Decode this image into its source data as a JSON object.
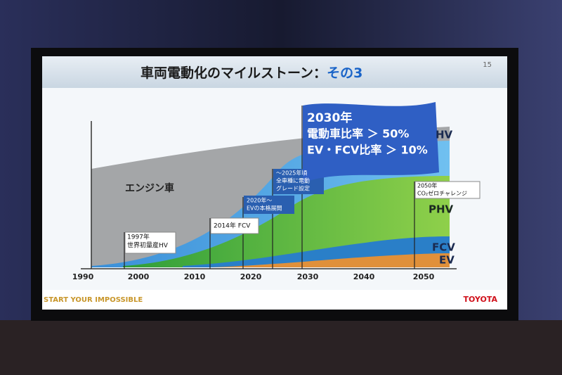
{
  "slide": {
    "title": "車両電動化のマイルストーン：",
    "title_highlight": "その3",
    "page_number": "15",
    "axis_years": [
      "1990",
      "2000",
      "2010",
      "2020",
      "2030",
      "2040",
      "2050"
    ],
    "region_labels": {
      "engine": "エンジン車",
      "hv": "HV",
      "phv": "PHV",
      "fcv": "FCV",
      "ev": "EV"
    },
    "milestones": [
      {
        "lines": [
          "1997年",
          "世界初量産HV"
        ]
      },
      {
        "lines": [
          "2014年 FCV"
        ]
      },
      {
        "lines": [
          "2020年～",
          "EVの本格展開"
        ]
      },
      {
        "lines": [
          "～2025年頃",
          "全車種に電動",
          "グレード設定"
        ]
      },
      {
        "lines": [
          "2050年",
          "CO₂ゼロチャレンジ"
        ]
      }
    ],
    "target": {
      "lines": [
        "2030年",
        "電動車比率 ＞ 50%",
        "EV・FCV比率 ＞ 10%"
      ]
    },
    "footer": {
      "tagline": "START YOUR IMPOSSIBLE",
      "brand": "TOYOTA"
    }
  }
}
